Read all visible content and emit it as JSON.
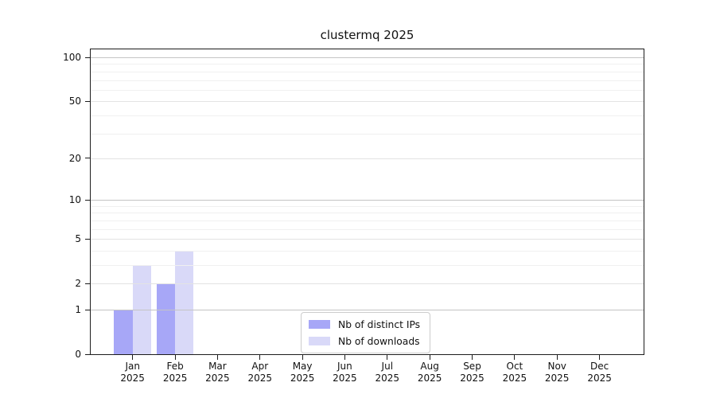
{
  "chart_data": {
    "type": "bar",
    "title": "clustermq 2025",
    "categories": [
      "Jan",
      "Feb",
      "Mar",
      "Apr",
      "May",
      "Jun",
      "Jul",
      "Aug",
      "Sep",
      "Oct",
      "Nov",
      "Dec"
    ],
    "category_year": "2025",
    "series": [
      {
        "name": "Nb of distinct IPs",
        "color": "#a7a7f7",
        "values": [
          1,
          2,
          0,
          0,
          0,
          0,
          0,
          0,
          0,
          0,
          0,
          0
        ]
      },
      {
        "name": "Nb of downloads",
        "color": "#d9d9f8",
        "values": [
          3,
          4,
          0,
          0,
          0,
          0,
          0,
          0,
          0,
          0,
          0,
          0
        ]
      }
    ],
    "xlabel": "",
    "ylabel": "",
    "y_scale": "log1p",
    "ylim": [
      0,
      100
    ],
    "yticks_labeled": [
      0,
      1,
      2,
      5,
      10,
      20,
      50,
      100
    ],
    "ytick_decades": [
      1,
      10,
      100
    ],
    "yticks_minor": [
      3,
      4,
      6,
      7,
      8,
      9,
      30,
      40,
      60,
      70,
      80,
      90
    ],
    "grid": "horizontal",
    "legend_position": "inside-bottom-center"
  },
  "colors": {
    "background": "#ffffff",
    "text": "#111111",
    "spine": "#1c1c1c",
    "grid_decade": "#c4c4c4",
    "grid_major": "#e3e3e3",
    "grid_minor": "#f0f0f0",
    "legend_border": "#cccccc",
    "legend_background": "#ffffff"
  }
}
